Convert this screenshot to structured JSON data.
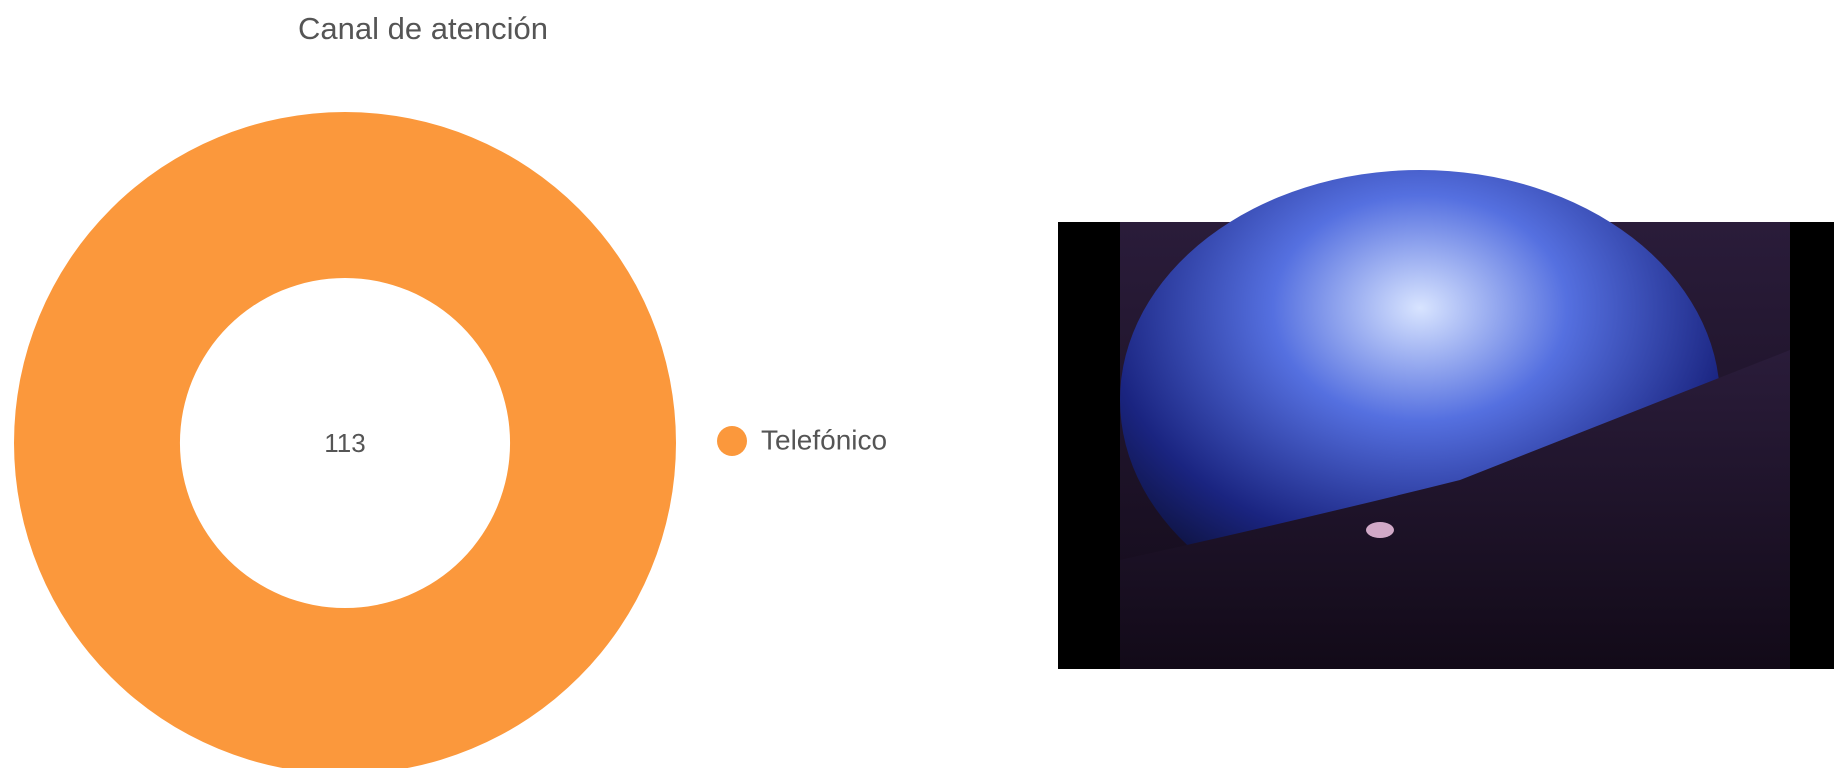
{
  "chart_data": {
    "type": "donut",
    "title": "Canal de atención",
    "categories": [
      "Telefónico"
    ],
    "values": [
      113
    ],
    "colors": [
      "#fb983c"
    ]
  }
}
